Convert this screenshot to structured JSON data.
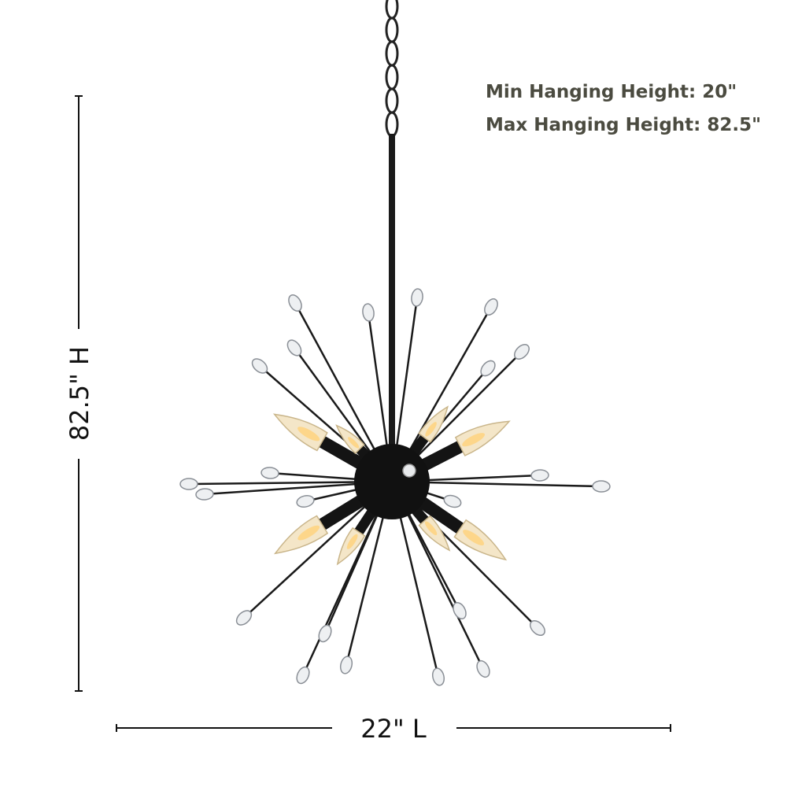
{
  "spec_lines": [
    "Min Hanging Height: 20\"",
    "Max Hanging Height: 82.5\""
  ],
  "height_label": "82.5\" H",
  "width_label": "22\" L"
}
